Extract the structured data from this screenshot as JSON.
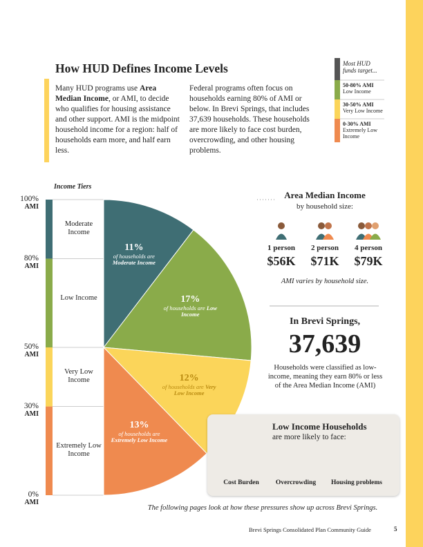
{
  "header": {
    "title": "How HUD Defines Income Levels",
    "left_paragraph": [
      "Many HUD programs use ",
      "Area Median Income",
      ", or AMI, to decide who qualifies for housing assistance and other support. AMI is the midpoint household income for a region: half of households earn more, and half earn less."
    ],
    "right_paragraph": "Federal programs often focus on households earning 80% of AMI or below. In Brevi Springs, that includes 37,639 households. These households are more likely to face cost burden, overcrowding, and other housing problems."
  },
  "legend": {
    "title": "Most HUD funds target...",
    "items": [
      {
        "range": "50-80% AMI",
        "name": "Low Income",
        "color": "#8aab4a"
      },
      {
        "range": "30-50% AMI",
        "name": "Very Low Income",
        "color": "#fbd55a"
      },
      {
        "range": "0-30% AMI",
        "name": "Extremely Low Income",
        "color": "#ef8a4f"
      }
    ]
  },
  "tiers": {
    "title": "Income Tiers",
    "unit": "AMI",
    "ticks": [
      {
        "value": 100,
        "label": "100%"
      },
      {
        "value": 80,
        "label": "80%"
      },
      {
        "value": 50,
        "label": "50%"
      },
      {
        "value": 30,
        "label": "30%"
      },
      {
        "value": 0,
        "label": "0%"
      }
    ],
    "bands": [
      {
        "name": "Moderate Income",
        "color": "#3f6e74"
      },
      {
        "name": "Low Income",
        "color": "#8aab4a"
      },
      {
        "name": "Very Low Income",
        "color": "#fbd55a"
      },
      {
        "name": "Extremely Low Income",
        "color": "#ef8a4f"
      }
    ]
  },
  "pie": {
    "caption": "of households are",
    "slices": [
      {
        "value": 11,
        "label": "11%",
        "tier": "Moderate Income"
      },
      {
        "value": 17,
        "label": "17%",
        "tier": "Low Income"
      },
      {
        "value": 12,
        "label": "12%",
        "tier": "Very Low Income"
      },
      {
        "value": 13,
        "label": "13%",
        "tier": "Extremely Low Income"
      }
    ]
  },
  "ami": {
    "title": "Area Median Income",
    "subtitle": "by household size:",
    "sizes": [
      {
        "label": "1 person",
        "amount": "$56K"
      },
      {
        "label": "2 person",
        "amount": "$71K"
      },
      {
        "label": "4 person",
        "amount": "$79K"
      }
    ],
    "note": "AMI varies by household size."
  },
  "brevi": {
    "heading": "In Brevi Springs,",
    "number": "37,639",
    "text": "Households were classified as low-income, meaning they earn 80% or less of the Area Median Income (AMI)"
  },
  "low_income": {
    "title": "Low Income Households",
    "subtitle": "are more likely to face:",
    "problems": [
      "Cost Burden",
      "Overcrowding",
      "Housing problems"
    ]
  },
  "footer": {
    "note": "The following pages look at how these pressures show up across Brevi Springs.",
    "guide": "Brevi Springs Consolidated Plan Community Guide",
    "page": "5"
  }
}
